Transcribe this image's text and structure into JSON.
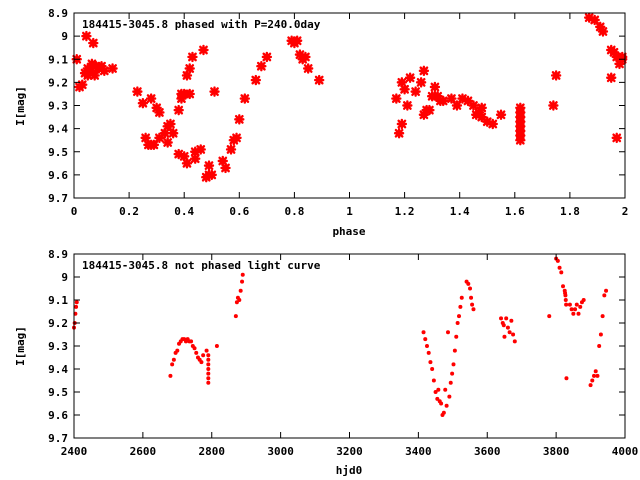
{
  "chart_data": [
    {
      "type": "scatter",
      "title": "184415-3045.8 phased with P=240.0day",
      "xlabel": "phase",
      "ylabel": "I[mag]",
      "xlim": [
        0,
        2
      ],
      "ylim": [
        9.7,
        8.9
      ],
      "y_inverted": true,
      "xticks": [
        "0",
        "0.2",
        "0.4",
        "0.6",
        "0.8",
        "1",
        "1.2",
        "1.4",
        "1.6",
        "1.8",
        "2"
      ],
      "yticks": [
        "8.9",
        "9",
        "9.1",
        "9.2",
        "9.3",
        "9.4",
        "9.5",
        "9.6",
        "9.7"
      ],
      "marker_color": "#ff0000",
      "marker": "star",
      "grid": false,
      "points": [
        [
          0.01,
          9.1
        ],
        [
          0.02,
          9.22
        ],
        [
          0.03,
          9.21
        ],
        [
          0.04,
          9.16
        ],
        [
          0.045,
          9.0
        ],
        [
          0.05,
          9.14
        ],
        [
          0.05,
          9.17
        ],
        [
          0.06,
          9.15
        ],
        [
          0.065,
          9.12
        ],
        [
          0.07,
          9.03
        ],
        [
          0.075,
          9.17
        ],
        [
          0.08,
          9.13
        ],
        [
          0.09,
          9.14
        ],
        [
          0.1,
          9.13
        ],
        [
          0.11,
          9.15
        ],
        [
          0.14,
          9.14
        ],
        [
          0.23,
          9.24
        ],
        [
          0.25,
          9.29
        ],
        [
          0.26,
          9.44
        ],
        [
          0.27,
          9.47
        ],
        [
          0.28,
          9.47
        ],
        [
          0.28,
          9.27
        ],
        [
          0.29,
          9.47
        ],
        [
          0.3,
          9.31
        ],
        [
          0.31,
          9.44
        ],
        [
          0.31,
          9.33
        ],
        [
          0.33,
          9.42
        ],
        [
          0.34,
          9.46
        ],
        [
          0.34,
          9.39
        ],
        [
          0.35,
          9.38
        ],
        [
          0.36,
          9.42
        ],
        [
          0.38,
          9.32
        ],
        [
          0.38,
          9.51
        ],
        [
          0.39,
          9.27
        ],
        [
          0.39,
          9.25
        ],
        [
          0.4,
          9.25
        ],
        [
          0.4,
          9.52
        ],
        [
          0.41,
          9.55
        ],
        [
          0.41,
          9.17
        ],
        [
          0.42,
          9.25
        ],
        [
          0.42,
          9.14
        ],
        [
          0.43,
          9.09
        ],
        [
          0.44,
          9.5
        ],
        [
          0.44,
          9.53
        ],
        [
          0.46,
          9.49
        ],
        [
          0.47,
          9.06
        ],
        [
          0.48,
          9.61
        ],
        [
          0.49,
          9.56
        ],
        [
          0.49,
          9.6
        ],
        [
          0.5,
          9.6
        ],
        [
          0.51,
          9.24
        ],
        [
          0.54,
          9.54
        ],
        [
          0.55,
          9.57
        ],
        [
          0.57,
          9.49
        ],
        [
          0.58,
          9.45
        ],
        [
          0.59,
          9.44
        ],
        [
          0.6,
          9.36
        ],
        [
          0.62,
          9.27
        ],
        [
          0.66,
          9.19
        ],
        [
          0.68,
          9.13
        ],
        [
          0.7,
          9.09
        ],
        [
          0.79,
          9.02
        ],
        [
          0.8,
          9.03
        ],
        [
          0.81,
          9.02
        ],
        [
          0.82,
          9.08
        ],
        [
          0.83,
          9.1
        ],
        [
          0.84,
          9.09
        ],
        [
          0.85,
          9.14
        ],
        [
          0.89,
          9.19
        ],
        [
          1.17,
          9.27
        ],
        [
          1.18,
          9.42
        ],
        [
          1.19,
          9.2
        ],
        [
          1.19,
          9.38
        ],
        [
          1.2,
          9.23
        ],
        [
          1.21,
          9.3
        ],
        [
          1.22,
          9.18
        ],
        [
          1.24,
          9.24
        ],
        [
          1.26,
          9.2
        ],
        [
          1.27,
          9.34
        ],
        [
          1.27,
          9.15
        ],
        [
          1.28,
          9.32
        ],
        [
          1.29,
          9.32
        ],
        [
          1.3,
          9.26
        ],
        [
          1.31,
          9.22
        ],
        [
          1.32,
          9.26
        ],
        [
          1.33,
          9.28
        ],
        [
          1.34,
          9.28
        ],
        [
          1.37,
          9.27
        ],
        [
          1.39,
          9.3
        ],
        [
          1.41,
          9.27
        ],
        [
          1.43,
          9.28
        ],
        [
          1.45,
          9.3
        ],
        [
          1.46,
          9.34
        ],
        [
          1.47,
          9.33
        ],
        [
          1.48,
          9.35
        ],
        [
          1.48,
          9.31
        ],
        [
          1.5,
          9.37
        ],
        [
          1.52,
          9.38
        ],
        [
          1.55,
          9.34
        ],
        [
          1.62,
          9.31
        ],
        [
          1.62,
          9.33
        ],
        [
          1.62,
          9.35
        ],
        [
          1.62,
          9.37
        ],
        [
          1.62,
          9.39
        ],
        [
          1.62,
          9.41
        ],
        [
          1.62,
          9.43
        ],
        [
          1.62,
          9.45
        ],
        [
          1.74,
          9.3
        ],
        [
          1.75,
          9.17
        ],
        [
          1.87,
          8.92
        ],
        [
          1.89,
          8.93
        ],
        [
          1.91,
          8.96
        ],
        [
          1.92,
          8.98
        ],
        [
          1.95,
          9.06
        ],
        [
          1.95,
          9.18
        ],
        [
          1.96,
          9.07
        ],
        [
          1.97,
          9.44
        ],
        [
          1.97,
          9.09
        ],
        [
          1.98,
          9.12
        ],
        [
          1.99,
          9.09
        ],
        [
          1.99,
          9.1
        ]
      ]
    },
    {
      "type": "scatter",
      "title": "184415-3045.8 not phased light curve",
      "xlabel": "hjd0",
      "ylabel": "I[mag]",
      "xlim": [
        2400,
        4000
      ],
      "ylim": [
        9.7,
        8.9
      ],
      "y_inverted": true,
      "xticks": [
        "2400",
        "2600",
        "2800",
        "3000",
        "3200",
        "3400",
        "3600",
        "3800",
        "4000"
      ],
      "yticks": [
        "8.9",
        "9",
        "9.1",
        "9.2",
        "9.3",
        "9.4",
        "9.5",
        "9.6",
        "9.7"
      ],
      "marker_color": "#ff0000",
      "marker": "dot",
      "grid": false,
      "points": [
        [
          2400,
          9.22
        ],
        [
          2402,
          9.2
        ],
        [
          2404,
          9.16
        ],
        [
          2406,
          9.13
        ],
        [
          2408,
          9.11
        ],
        [
          2680,
          9.43
        ],
        [
          2685,
          9.38
        ],
        [
          2690,
          9.36
        ],
        [
          2695,
          9.33
        ],
        [
          2700,
          9.32
        ],
        [
          2705,
          9.29
        ],
        [
          2710,
          9.28
        ],
        [
          2715,
          9.27
        ],
        [
          2720,
          9.27
        ],
        [
          2725,
          9.28
        ],
        [
          2730,
          9.27
        ],
        [
          2735,
          9.28
        ],
        [
          2740,
          9.28
        ],
        [
          2745,
          9.3
        ],
        [
          2750,
          9.31
        ],
        [
          2755,
          9.33
        ],
        [
          2760,
          9.35
        ],
        [
          2765,
          9.36
        ],
        [
          2770,
          9.37
        ],
        [
          2775,
          9.34
        ],
        [
          2785,
          9.32
        ],
        [
          2790,
          9.34
        ],
        [
          2790,
          9.36
        ],
        [
          2790,
          9.38
        ],
        [
          2790,
          9.4
        ],
        [
          2790,
          9.42
        ],
        [
          2790,
          9.44
        ],
        [
          2790,
          9.46
        ],
        [
          2815,
          9.3
        ],
        [
          2870,
          9.17
        ],
        [
          2873,
          9.11
        ],
        [
          2876,
          9.09
        ],
        [
          2880,
          9.1
        ],
        [
          2884,
          9.06
        ],
        [
          2888,
          9.02
        ],
        [
          2890,
          8.99
        ],
        [
          3415,
          9.24
        ],
        [
          3420,
          9.27
        ],
        [
          3425,
          9.3
        ],
        [
          3430,
          9.33
        ],
        [
          3435,
          9.37
        ],
        [
          3440,
          9.4
        ],
        [
          3445,
          9.45
        ],
        [
          3450,
          9.5
        ],
        [
          3455,
          9.53
        ],
        [
          3458,
          9.49
        ],
        [
          3462,
          9.54
        ],
        [
          3466,
          9.55
        ],
        [
          3470,
          9.6
        ],
        [
          3474,
          9.59
        ],
        [
          3478,
          9.49
        ],
        [
          3482,
          9.56
        ],
        [
          3486,
          9.24
        ],
        [
          3490,
          9.52
        ],
        [
          3494,
          9.46
        ],
        [
          3498,
          9.42
        ],
        [
          3502,
          9.38
        ],
        [
          3506,
          9.32
        ],
        [
          3510,
          9.26
        ],
        [
          3514,
          9.2
        ],
        [
          3518,
          9.17
        ],
        [
          3522,
          9.13
        ],
        [
          3526,
          9.09
        ],
        [
          3540,
          9.02
        ],
        [
          3545,
          9.03
        ],
        [
          3550,
          9.05
        ],
        [
          3553,
          9.09
        ],
        [
          3556,
          9.12
        ],
        [
          3560,
          9.14
        ],
        [
          3640,
          9.18
        ],
        [
          3645,
          9.2
        ],
        [
          3648,
          9.21
        ],
        [
          3650,
          9.26
        ],
        [
          3655,
          9.18
        ],
        [
          3660,
          9.22
        ],
        [
          3665,
          9.24
        ],
        [
          3670,
          9.19
        ],
        [
          3675,
          9.25
        ],
        [
          3680,
          9.28
        ],
        [
          3780,
          9.17
        ],
        [
          3800,
          8.92
        ],
        [
          3805,
          8.93
        ],
        [
          3810,
          8.96
        ],
        [
          3815,
          8.98
        ],
        [
          3820,
          9.04
        ],
        [
          3825,
          9.06
        ],
        [
          3826,
          9.07
        ],
        [
          3827,
          9.08
        ],
        [
          3828,
          9.1
        ],
        [
          3829,
          9.12
        ],
        [
          3830,
          9.44
        ],
        [
          3840,
          9.12
        ],
        [
          3845,
          9.14
        ],
        [
          3850,
          9.16
        ],
        [
          3855,
          9.14
        ],
        [
          3860,
          9.12
        ],
        [
          3865,
          9.16
        ],
        [
          3870,
          9.13
        ],
        [
          3875,
          9.11
        ],
        [
          3880,
          9.1
        ],
        [
          3900,
          9.47
        ],
        [
          3905,
          9.45
        ],
        [
          3910,
          9.43
        ],
        [
          3915,
          9.41
        ],
        [
          3920,
          9.43
        ],
        [
          3925,
          9.3
        ],
        [
          3930,
          9.25
        ],
        [
          3935,
          9.17
        ],
        [
          3940,
          9.08
        ],
        [
          3945,
          9.06
        ]
      ]
    }
  ]
}
